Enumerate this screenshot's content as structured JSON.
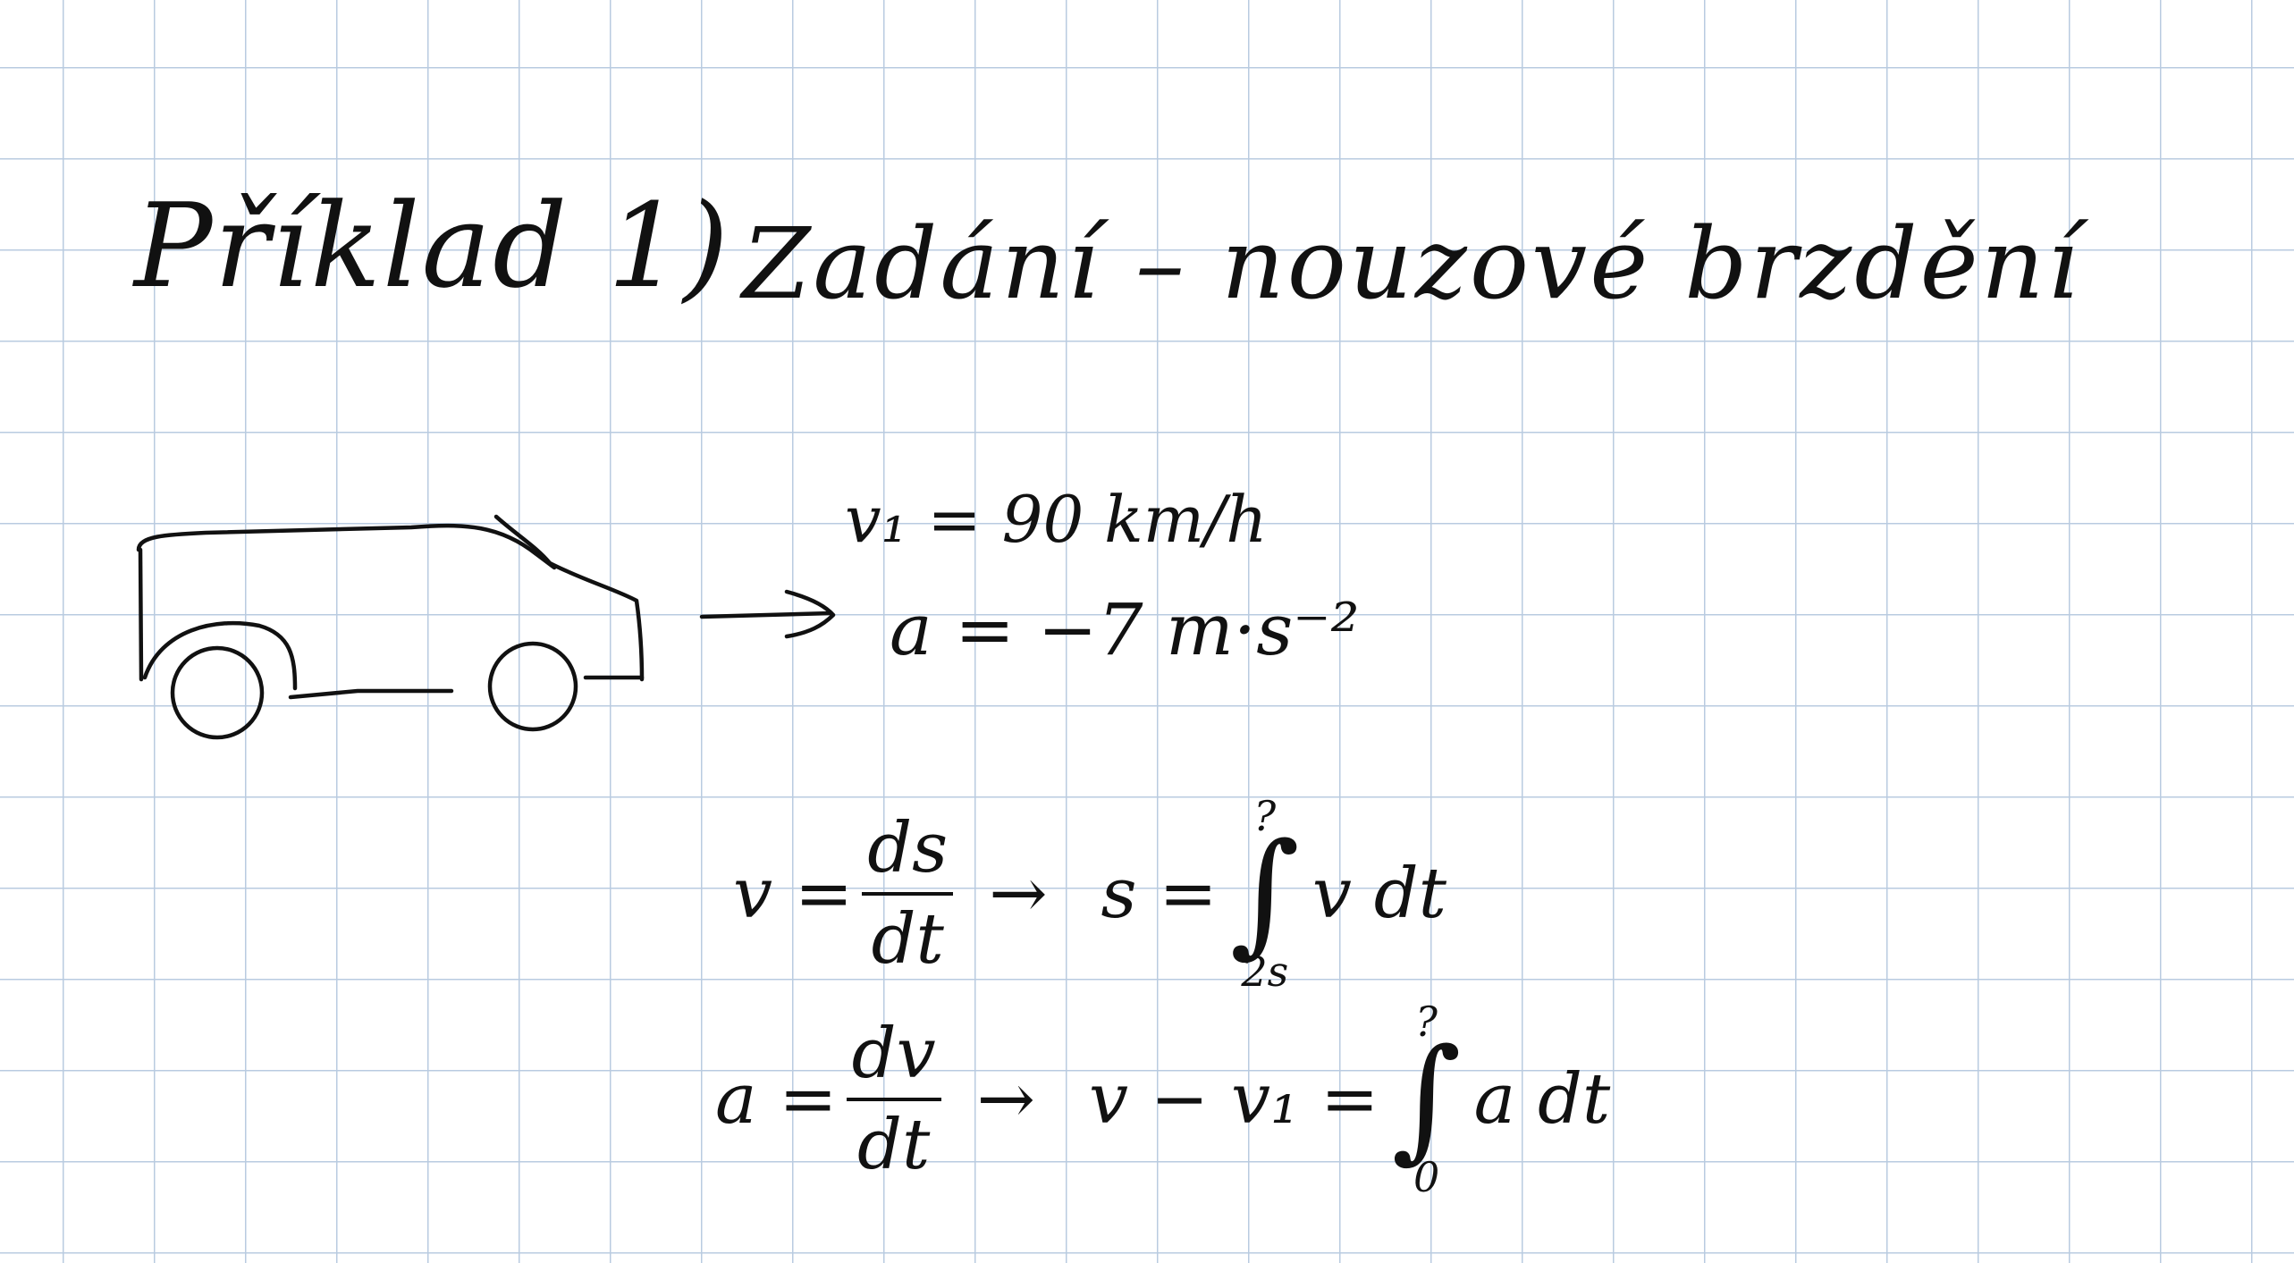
{
  "title": "Příklad 1)",
  "heading": "Zadání – nouzové brzdění",
  "given": {
    "v1": "v₁ = 90 km/h",
    "a": "a = −7 m·s⁻²"
  },
  "eq1": {
    "lhs": "v =",
    "num": "ds",
    "den": "dt",
    "arrow": "→",
    "result_lhs": "s =",
    "upper": "?",
    "lower": "2s",
    "integrand": "v dt"
  },
  "eq2": {
    "lhs": "a =",
    "num": "dv",
    "den": "dt",
    "arrow": "→",
    "result_lhs": "v − v₁ =",
    "upper": "?",
    "lower": "0",
    "integrand": "a dt"
  },
  "colors": {
    "ink": "#111111",
    "grid": "#b9cbe0",
    "paper": "#ffffff"
  }
}
